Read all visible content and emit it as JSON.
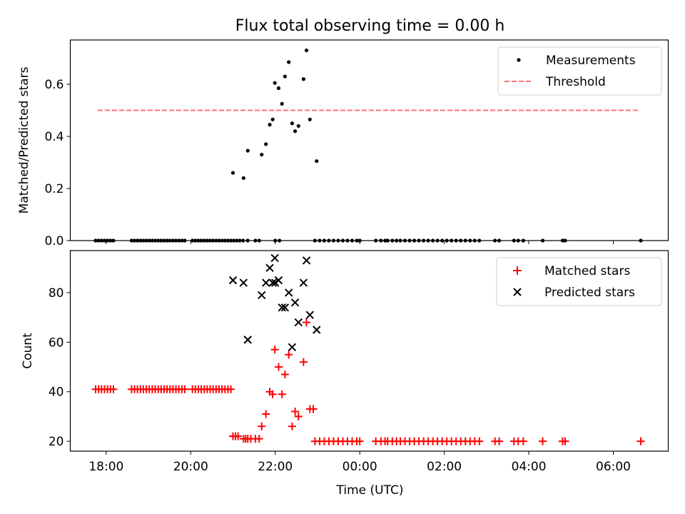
{
  "figure": {
    "title": "Flux total observing time = 0.00 h",
    "xlabel": "Time (UTC)",
    "x_ticks": [
      "18:00",
      "20:00",
      "22:00",
      "00:00",
      "02:00",
      "04:00",
      "06:00"
    ]
  },
  "chart_data": [
    {
      "type": "scatter",
      "panel": "top",
      "title": "Flux total observing time = 0.00 h",
      "xlabel": "",
      "ylabel": "Matched/Predicted stars",
      "x_unit": "hours after 18:00 UTC",
      "xlim": [
        -0.85,
        13.3
      ],
      "ylim": [
        0,
        0.77
      ],
      "yticks": [
        0.0,
        0.2,
        0.4,
        0.6
      ],
      "ytick_labels": [
        "0.0",
        "0.2",
        "0.4",
        "0.6"
      ],
      "legend_position": "top-right",
      "grid": false,
      "series": [
        {
          "name": "Measurements",
          "kind": "scatter",
          "color": "#000000",
          "marker": "dot",
          "x": [
            -0.25,
            -0.18,
            -0.11,
            -0.04,
            0.03,
            0.1,
            0.17,
            0.6,
            0.67,
            0.74,
            0.81,
            0.88,
            0.95,
            1.02,
            1.09,
            1.16,
            1.23,
            1.3,
            1.37,
            1.44,
            1.51,
            1.58,
            1.65,
            1.72,
            1.79,
            1.86,
            2.04,
            2.11,
            2.18,
            2.25,
            2.32,
            2.39,
            2.46,
            2.53,
            2.6,
            2.67,
            2.74,
            2.81,
            2.88,
            2.95,
            3.02,
            3.09,
            3.16,
            3.24,
            3.35,
            3.53,
            3.62,
            4.0,
            4.1,
            4.94,
            5.05,
            5.16,
            5.27,
            5.38,
            5.49,
            5.6,
            5.71,
            5.82,
            5.93,
            6.0,
            6.38,
            6.5,
            6.6,
            6.66,
            6.77,
            6.87,
            6.96,
            7.07,
            7.18,
            7.29,
            7.4,
            7.51,
            7.62,
            7.73,
            7.84,
            7.95,
            8.06,
            8.17,
            8.28,
            8.39,
            8.5,
            8.61,
            8.72,
            8.83,
            9.2,
            9.3,
            9.65,
            9.75,
            9.87,
            10.33,
            10.8,
            10.86,
            12.65
          ],
          "y": [
            0,
            0,
            0,
            0,
            0,
            0,
            0,
            0,
            0,
            0,
            0,
            0,
            0,
            0,
            0,
            0,
            0,
            0,
            0,
            0,
            0,
            0,
            0,
            0,
            0,
            0,
            0,
            0,
            0,
            0,
            0,
            0,
            0,
            0,
            0,
            0,
            0,
            0,
            0,
            0,
            0,
            0,
            0,
            0,
            0,
            0,
            0,
            0,
            0,
            0,
            0,
            0,
            0,
            0,
            0,
            0,
            0,
            0,
            0,
            0,
            0,
            0,
            0,
            0,
            0,
            0,
            0,
            0,
            0,
            0,
            0,
            0,
            0,
            0,
            0,
            0,
            0,
            0,
            0,
            0,
            0,
            0,
            0,
            0,
            0,
            0,
            0,
            0,
            0,
            0,
            0,
            0,
            0
          ]
        },
        {
          "name": "Measurements",
          "kind": "scatter",
          "color": "#000000",
          "marker": "dot",
          "x": [
            3.0,
            3.25,
            3.35,
            3.68,
            3.78,
            3.87,
            3.94,
            3.99,
            4.08,
            4.16,
            4.23,
            4.32,
            4.4,
            4.47,
            4.55,
            4.67,
            4.74,
            4.82,
            4.98
          ],
          "y": [
            0.26,
            0.24,
            0.345,
            0.33,
            0.37,
            0.445,
            0.465,
            0.605,
            0.585,
            0.525,
            0.63,
            0.685,
            0.45,
            0.42,
            0.44,
            0.62,
            0.73,
            0.465,
            0.305
          ]
        },
        {
          "name": "Threshold",
          "kind": "line",
          "color": "#ff7373",
          "dash": "dashed",
          "x": [
            -0.2,
            12.6
          ],
          "y": [
            0.5,
            0.5
          ]
        }
      ]
    },
    {
      "type": "scatter",
      "panel": "bottom",
      "xlabel": "Time (UTC)",
      "ylabel": "Count",
      "x_unit": "hours after 18:00 UTC",
      "xlim": [
        -0.85,
        13.3
      ],
      "ylim": [
        16,
        97
      ],
      "yticks": [
        20,
        40,
        60,
        80
      ],
      "ytick_labels": [
        "20",
        "40",
        "60",
        "80"
      ],
      "xticks": [
        0,
        2,
        4,
        6,
        8,
        10,
        12
      ],
      "xtick_labels": [
        "18:00",
        "20:00",
        "22:00",
        "00:00",
        "02:00",
        "04:00",
        "06:00"
      ],
      "legend_position": "top-right",
      "grid": false,
      "series": [
        {
          "name": "Matched stars",
          "kind": "scatter",
          "color": "#ff0000",
          "marker": "plus",
          "x": [
            -0.25,
            -0.18,
            -0.11,
            -0.04,
            0.03,
            0.1,
            0.17,
            0.6,
            0.67,
            0.74,
            0.81,
            0.88,
            0.95,
            1.02,
            1.09,
            1.16,
            1.23,
            1.3,
            1.37,
            1.44,
            1.51,
            1.58,
            1.65,
            1.72,
            1.79,
            1.86,
            2.04,
            2.11,
            2.18,
            2.25,
            2.32,
            2.39,
            2.46,
            2.53,
            2.6,
            2.67,
            2.74,
            2.81,
            2.88,
            2.95,
            3.0,
            3.06,
            3.12,
            3.25,
            3.3,
            3.35,
            3.42,
            3.53,
            3.62,
            3.68,
            3.78,
            3.87,
            3.94,
            3.99,
            4.08,
            4.16,
            4.23,
            4.32,
            4.4,
            4.47,
            4.55,
            4.67,
            4.74,
            4.82,
            4.9,
            4.94,
            5.05,
            5.16,
            5.27,
            5.38,
            5.49,
            5.6,
            5.71,
            5.82,
            5.93,
            6.0,
            6.38,
            6.5,
            6.6,
            6.66,
            6.77,
            6.87,
            6.96,
            7.07,
            7.18,
            7.29,
            7.4,
            7.51,
            7.62,
            7.73,
            7.84,
            7.95,
            8.06,
            8.17,
            8.28,
            8.39,
            8.5,
            8.61,
            8.72,
            8.83,
            9.2,
            9.3,
            9.65,
            9.75,
            9.87,
            10.33,
            10.8,
            10.86,
            12.65
          ],
          "y": [
            41,
            41,
            41,
            41,
            41,
            41,
            41,
            41,
            41,
            41,
            41,
            41,
            41,
            41,
            41,
            41,
            41,
            41,
            41,
            41,
            41,
            41,
            41,
            41,
            41,
            41,
            41,
            41,
            41,
            41,
            41,
            41,
            41,
            41,
            41,
            41,
            41,
            41,
            41,
            41,
            22,
            22,
            22,
            21,
            21,
            21,
            21,
            21,
            21,
            26,
            31,
            40,
            39,
            57,
            50,
            39,
            47,
            55,
            26,
            32,
            30,
            52,
            68,
            33,
            33,
            20,
            20,
            20,
            20,
            20,
            20,
            20,
            20,
            20,
            20,
            20,
            20,
            20,
            20,
            20,
            20,
            20,
            20,
            20,
            20,
            20,
            20,
            20,
            20,
            20,
            20,
            20,
            20,
            20,
            20,
            20,
            20,
            20,
            20,
            20,
            20,
            20,
            20,
            20,
            20,
            20,
            20,
            20,
            20
          ]
        },
        {
          "name": "Predicted stars",
          "kind": "scatter",
          "color": "#000000",
          "marker": "x",
          "x": [
            3.0,
            3.25,
            3.35,
            3.68,
            3.78,
            3.87,
            3.94,
            3.99,
            4.0,
            4.08,
            4.16,
            4.23,
            4.32,
            4.4,
            4.47,
            4.55,
            4.67,
            4.74,
            4.82,
            4.98
          ],
          "y": [
            85,
            84,
            61,
            79,
            84,
            90,
            84,
            94,
            84,
            85,
            74,
            74,
            80,
            58,
            76,
            68,
            84,
            93,
            71,
            65
          ]
        }
      ]
    }
  ]
}
